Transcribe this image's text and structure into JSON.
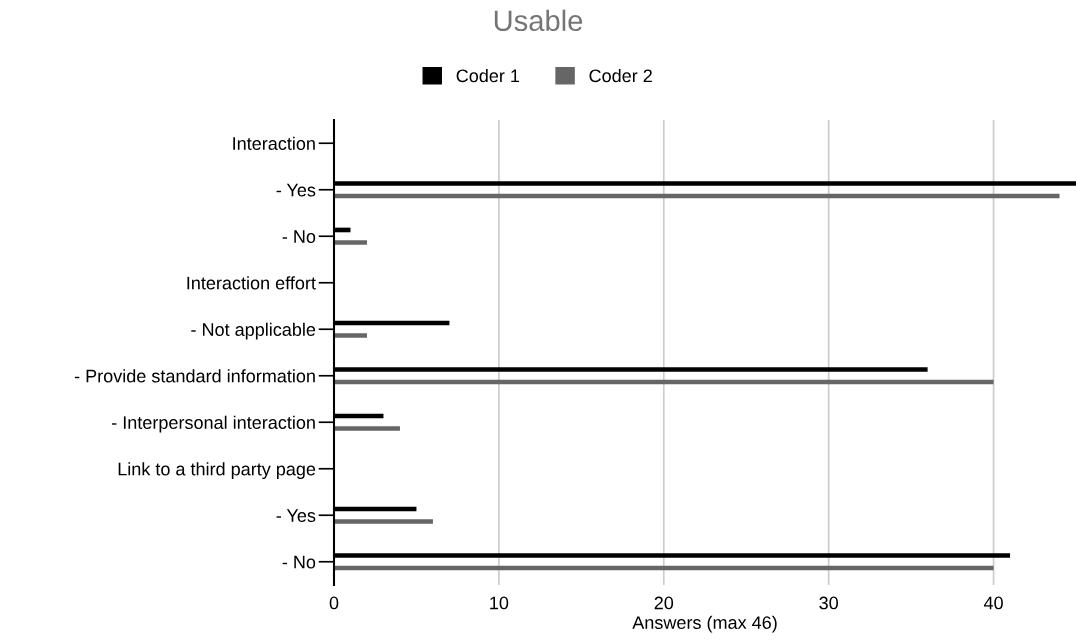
{
  "chart_data": {
    "type": "bar",
    "orientation": "horizontal",
    "title": "Usable",
    "xlabel": "Answers (max 46)",
    "categories": [
      "Interaction",
      "- Yes",
      "- No",
      "Interaction effort",
      "- Not applicable",
      "- Provide standard information",
      "- Interpersonal interaction",
      "Link to a third party page",
      "- Yes",
      "- No"
    ],
    "series": [
      {
        "name": "Coder 1",
        "color": "#000000",
        "values": [
          null,
          45,
          1,
          null,
          7,
          36,
          3,
          null,
          5,
          41
        ]
      },
      {
        "name": "Coder 2",
        "color": "#666666",
        "values": [
          null,
          44,
          2,
          null,
          2,
          40,
          4,
          null,
          6,
          40
        ]
      }
    ],
    "xlim": [
      0,
      45
    ],
    "xticks": [
      0,
      10,
      20,
      30,
      40
    ],
    "grid": "x",
    "legend": "top"
  }
}
